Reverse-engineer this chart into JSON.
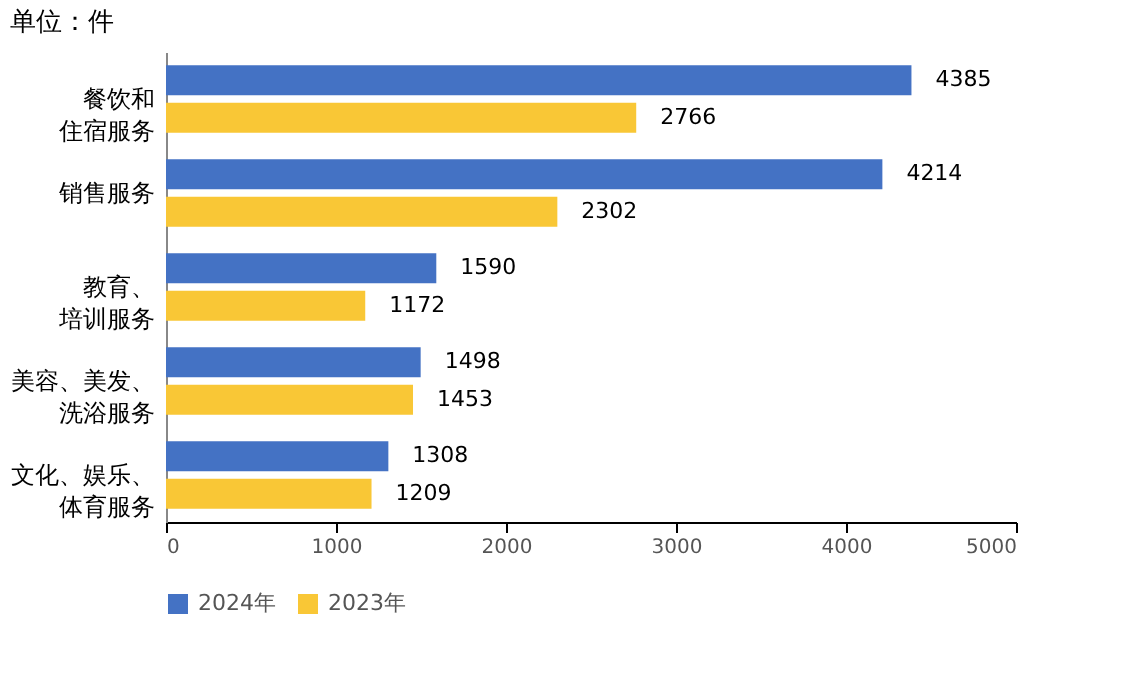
{
  "chart_data": {
    "type": "bar",
    "orientation": "horizontal",
    "title": "单位：件",
    "categories": [
      "餐饮和住宿服务",
      "销售服务",
      "教育、培训服务",
      "美容、美发、洗浴服务",
      "文化、娱乐、体育服务"
    ],
    "series": [
      {
        "name": "2024年",
        "color": "#4472c4",
        "values": [
          4385,
          4214,
          1590,
          1498,
          1308
        ]
      },
      {
        "name": "2023年",
        "color": "#f9c736",
        "values": [
          2766,
          2302,
          1172,
          1453,
          1209
        ]
      }
    ],
    "xlim": [
      0,
      5000
    ],
    "xticks": [
      0,
      1000,
      2000,
      3000,
      4000,
      5000
    ],
    "grid": false,
    "legend": "bottom",
    "data_labels": true
  }
}
